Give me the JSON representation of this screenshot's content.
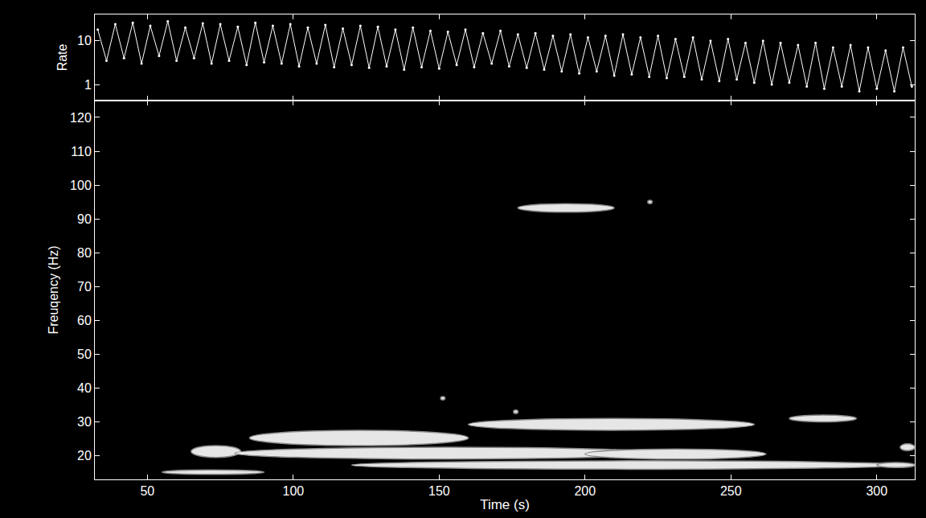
{
  "chart_data": [
    {
      "type": "line",
      "y_label": "Rate",
      "log": "y",
      "color": "#ffffff",
      "marker": "circle",
      "tick_labels": "y",
      "xlim": [
        32,
        313
      ],
      "xticks": [
        50,
        100,
        150,
        200,
        250,
        300
      ],
      "ylim": [
        0.43,
        40
      ],
      "yticks": [
        1,
        10
      ],
      "x": [
        33,
        36,
        39,
        42,
        45,
        48,
        51,
        54,
        57,
        60,
        63,
        66,
        69,
        72,
        75,
        78,
        81,
        84,
        87,
        90,
        93,
        96,
        99,
        102,
        105,
        108,
        111,
        114,
        117,
        120,
        123,
        126,
        129,
        132,
        135,
        138,
        141,
        144,
        147,
        150,
        153,
        156,
        159,
        162,
        165,
        168,
        171,
        174,
        177,
        180,
        183,
        186,
        189,
        192,
        195,
        198,
        201,
        204,
        207,
        210,
        213,
        216,
        219,
        222,
        225,
        228,
        231,
        234,
        237,
        240,
        243,
        246,
        249,
        252,
        255,
        258,
        261,
        264,
        267,
        270,
        273,
        276,
        279,
        282,
        285,
        288,
        291,
        294,
        297,
        300,
        303,
        306,
        309,
        312
      ],
      "values": [
        18,
        3.5,
        24,
        4,
        26,
        3,
        22,
        4.5,
        28,
        3.5,
        20,
        4,
        25,
        3,
        24,
        3.5,
        21,
        2.8,
        26,
        3.2,
        22,
        3,
        24,
        2.6,
        20,
        3,
        23,
        2.5,
        19,
        2.8,
        22,
        2.4,
        21,
        2.6,
        18,
        2.2,
        20,
        2.5,
        17,
        2.3,
        16,
        2.8,
        18,
        2.5,
        15,
        3,
        17,
        2.6,
        14,
        2.4,
        15,
        2.2,
        13,
        2,
        14,
        1.8,
        12,
        2,
        13,
        1.6,
        14,
        1.7,
        12,
        1.5,
        13,
        1.4,
        11,
        1.5,
        12,
        1.3,
        10,
        1.2,
        11,
        1.3,
        9,
        1.1,
        10,
        1,
        9,
        1.1,
        8,
        0.9,
        9,
        0.8,
        7,
        0.9,
        8,
        0.7,
        7,
        0.8,
        6,
        0.7,
        7,
        0.9
      ]
    },
    {
      "type": "contour",
      "x_label": "Time (s)",
      "y_label": "Freuqency (Hz)",
      "color": "#e6e6e6",
      "xlim": [
        32,
        313
      ],
      "xticks": [
        50,
        100,
        150,
        200,
        250,
        300
      ],
      "ylim": [
        13,
        125
      ],
      "yticks": [
        20,
        30,
        40,
        50,
        60,
        70,
        80,
        90,
        100,
        110,
        120
      ],
      "features": [
        {
          "time": [
            177,
            210
          ],
          "frequency": [
            92,
            94.5
          ]
        },
        {
          "time": [
            55,
            90
          ],
          "frequency": [
            14.5,
            15.8
          ]
        },
        {
          "time": [
            65,
            82
          ],
          "frequency": [
            19.5,
            23
          ]
        },
        {
          "time": [
            80,
            225
          ],
          "frequency": [
            19,
            22.5
          ]
        },
        {
          "time": [
            85,
            160
          ],
          "frequency": [
            23,
            27.5
          ]
        },
        {
          "time": [
            160,
            258
          ],
          "frequency": [
            27.5,
            31
          ]
        },
        {
          "time": [
            270,
            293
          ],
          "frequency": [
            30,
            32
          ]
        },
        {
          "time": [
            120,
            310
          ],
          "frequency": [
            16,
            18.5
          ]
        },
        {
          "time": [
            200,
            262
          ],
          "frequency": [
            19,
            22
          ]
        },
        {
          "time": [
            300,
            313
          ],
          "frequency": [
            16.5,
            18
          ]
        },
        {
          "time": [
            308,
            313
          ],
          "frequency": [
            21.5,
            23.5
          ]
        },
        {
          "time": [
            150.5,
            152
          ],
          "frequency": [
            36.5,
            37.5
          ]
        },
        {
          "time": [
            175.5,
            177
          ],
          "frequency": [
            32.5,
            33.5
          ]
        },
        {
          "time": [
            221.5,
            223
          ],
          "frequency": [
            94.5,
            95.5
          ]
        }
      ]
    }
  ]
}
